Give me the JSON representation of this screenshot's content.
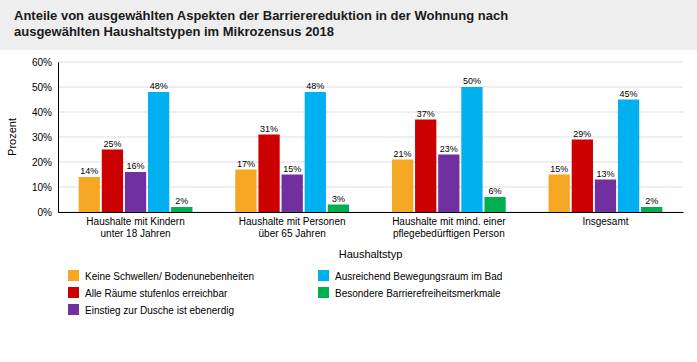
{
  "chart_data": {
    "type": "bar",
    "title": "Anteile von ausgewählten Aspekten der Barrierereduktion in der Wohnung nach\nausgewählten Haushaltstypen im Mikrozensus 2018",
    "x_label": "Haushaltstyp",
    "y_label": "Prozent",
    "categories": [
      "Haushalte mit Kindern\nunter 18 Jahren",
      "Haushalte mit Personen\nüber 65 Jahren",
      "Haushalte mit mind. einer\npflegebedürftigen Person",
      "Insgesamt"
    ],
    "series": [
      {
        "name": "Keine Schwellen/ Bodenunebenheiten",
        "color": "#F5A623",
        "values": [
          14,
          17,
          21,
          15
        ],
        "value_labels": [
          "14%",
          "17%",
          "21%",
          "15%"
        ]
      },
      {
        "name": "Alle Räume stufenlos erreichbar",
        "color": "#CC0000",
        "values": [
          25,
          31,
          37,
          29
        ],
        "value_labels": [
          "25%",
          "31%",
          "37%",
          "29%"
        ]
      },
      {
        "name": "Einstieg zur Dusche ist ebenerdig",
        "color": "#7030A0",
        "values": [
          16,
          15,
          23,
          13
        ],
        "value_labels": [
          "16%",
          "15%",
          "23%",
          "13%"
        ]
      },
      {
        "name": "Ausreichend Bewegungsraum im Bad",
        "color": "#00B0F0",
        "values": [
          48,
          48,
          50,
          45
        ],
        "value_labels": [
          "48%",
          "48%",
          "50%",
          "45%"
        ]
      },
      {
        "name": "Besondere Barrierefreiheitsmerkmale",
        "color": "#00B050",
        "values": [
          2,
          3,
          6,
          2
        ],
        "value_labels": [
          "2%",
          "3%",
          "6%",
          "2%"
        ]
      }
    ],
    "ylim": [
      0,
      60
    ],
    "yticks": [
      {
        "value": 0,
        "label": "0%"
      },
      {
        "value": 10,
        "label": "10%"
      },
      {
        "value": 20,
        "label": "20%"
      },
      {
        "value": 30,
        "label": "30%"
      },
      {
        "value": 40,
        "label": "40%"
      },
      {
        "value": 50,
        "label": "50%"
      },
      {
        "value": 60,
        "label": "60%"
      }
    ],
    "grid": true,
    "data_labels": true,
    "legend": "bottom"
  }
}
